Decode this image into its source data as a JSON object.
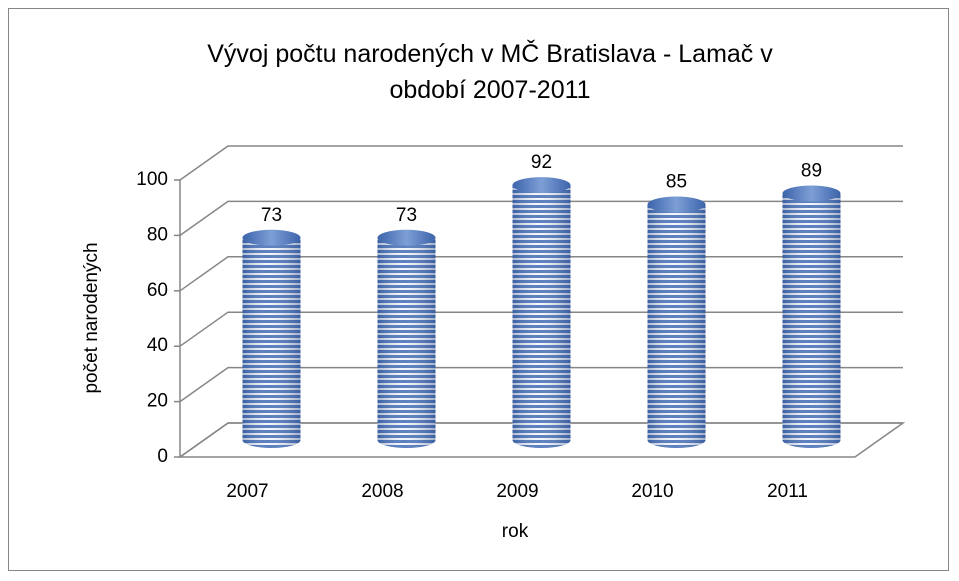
{
  "chart_data": {
    "type": "bar3d",
    "title": "Vývoj počtu narodených v MČ Bratislava - Lamač v období 2007-2011",
    "x_label": "rok",
    "y_label": "počet narodených",
    "categories": [
      "2007",
      "2008",
      "2009",
      "2010",
      "2011"
    ],
    "values": [
      73,
      73,
      92,
      85,
      89
    ],
    "color": "#4a72b8",
    "ylim": [
      0,
      100
    ],
    "yticks": [
      0,
      20,
      40,
      60,
      80,
      100
    ],
    "grid": true
  }
}
